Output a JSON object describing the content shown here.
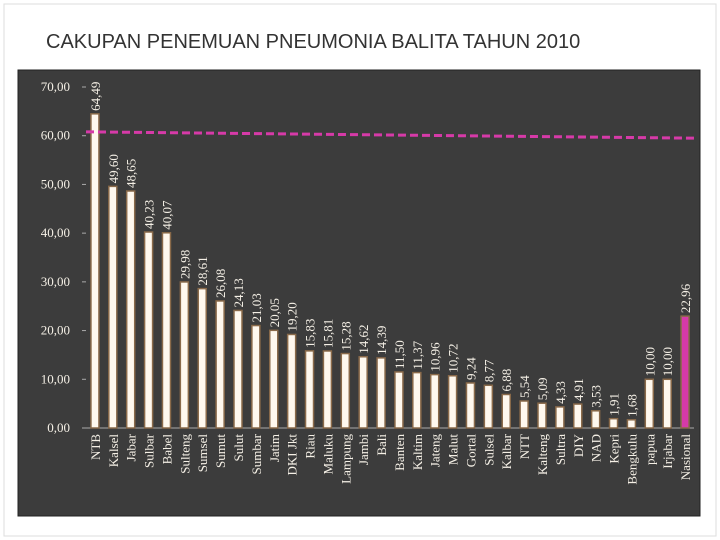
{
  "chart_data": {
    "type": "bar",
    "title": "CAKUPAN PENEMUAN PNEUMONIA BALITA TAHUN 2010",
    "categories": [
      "NTB",
      "Kalsel",
      "Jabar",
      "Sulbar",
      "Babel",
      "Sulteng",
      "Sumsel",
      "Sumut",
      "Sulut",
      "Sumbar",
      "Jatim",
      "DKI Jkt",
      "Riau",
      "Maluku",
      "Lampung",
      "Jambi",
      "Bali",
      "Banten",
      "Kaltim",
      "Jateng",
      "Malut",
      "Gortal",
      "Sulsel",
      "Kalbar",
      "NTT",
      "Kalteng",
      "Sultra",
      "DIY",
      "NAD",
      "Kepri",
      "Bengkulu",
      "papua",
      "Irjabar",
      "Nasional"
    ],
    "values": [
      64.49,
      49.6,
      48.65,
      40.23,
      40.07,
      29.98,
      28.61,
      26.08,
      24.13,
      21.03,
      20.05,
      19.2,
      15.83,
      15.81,
      15.28,
      14.62,
      14.39,
      11.5,
      11.37,
      10.96,
      10.72,
      9.24,
      8.77,
      6.88,
      5.54,
      5.09,
      4.33,
      4.91,
      3.53,
      1.91,
      1.68,
      10.0,
      10.0,
      22.96
    ],
    "value_labels": [
      "64,49",
      "49,60",
      "48,65",
      "40,23",
      "40,07",
      "29,98",
      "28,61",
      "26,08",
      "24,13",
      "21,03",
      "20,05",
      "19,20",
      "15,83",
      "15,81",
      "15,28",
      "14,62",
      "14,39",
      "11,50",
      "11,37",
      "10,96",
      "10,72",
      "9,24",
      "8,77",
      "6,88",
      "5,54",
      "5,09",
      "4,33",
      "4,91",
      "3,53",
      "1,91",
      "1,68",
      "10,00",
      "10,00",
      "22,96"
    ],
    "colors": [
      "#fff8ee",
      "#fff8ee",
      "#fff8ee",
      "#fff8ee",
      "#fff8ee",
      "#fff8ee",
      "#fff8ee",
      "#fff8ee",
      "#fff8ee",
      "#fff8ee",
      "#fff8ee",
      "#fff8ee",
      "#fff8ee",
      "#fff8ee",
      "#fff8ee",
      "#fff8ee",
      "#fff8ee",
      "#fff8ee",
      "#fff8ee",
      "#fff8ee",
      "#fff8ee",
      "#fff8ee",
      "#fff8ee",
      "#fff8ee",
      "#fff8ee",
      "#fff8ee",
      "#fff8ee",
      "#fff8ee",
      "#fff8ee",
      "#fff8ee",
      "#fff8ee",
      "#fff8ee",
      "#fff8ee",
      "#d63aa8"
    ],
    "reference_line": {
      "values": [
        60.8,
        59.5
      ],
      "color": "#d63aa8"
    },
    "ylim": [
      0,
      70
    ],
    "yticks": [
      {
        "value": 0,
        "label": "0,00"
      },
      {
        "value": 10,
        "label": "10,00"
      },
      {
        "value": 20,
        "label": "20,00"
      },
      {
        "value": 30,
        "label": "30,00"
      },
      {
        "value": 40,
        "label": "40,00"
      },
      {
        "value": 50,
        "label": "50,00"
      },
      {
        "value": 60,
        "label": "60,00"
      },
      {
        "value": 70,
        "label": "70,00"
      }
    ]
  }
}
